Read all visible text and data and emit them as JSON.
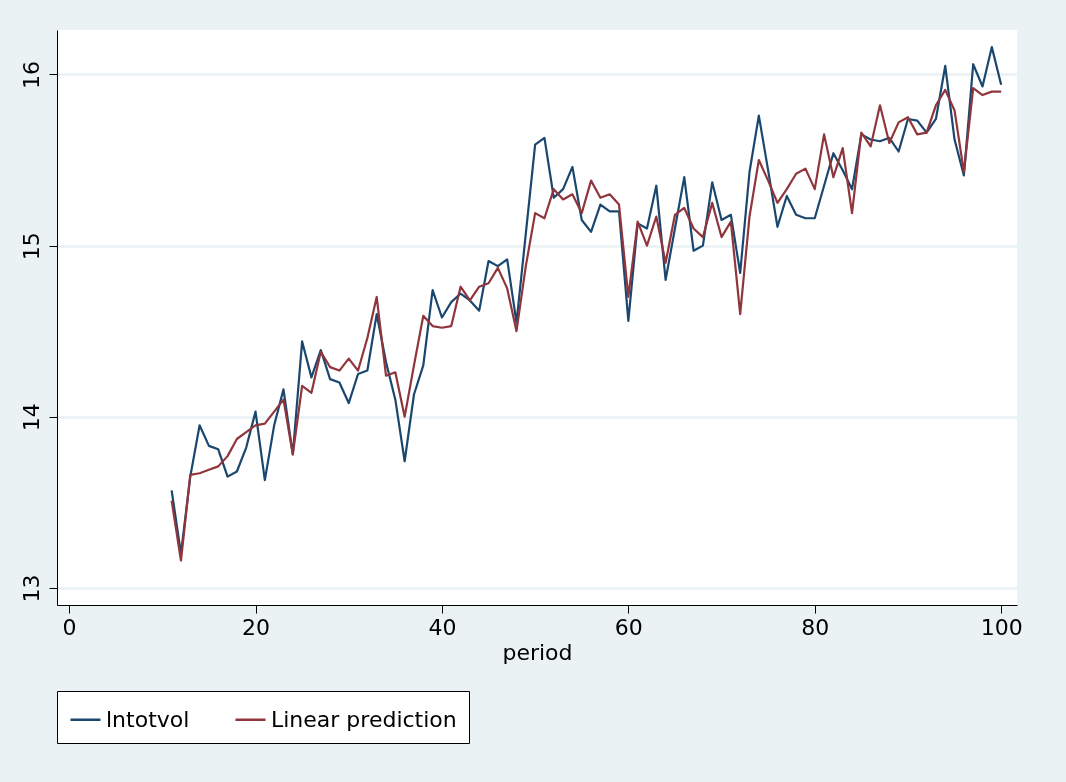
{
  "chart_data": {
    "type": "line",
    "xlabel": "period",
    "legend": "bottom",
    "grid": "y",
    "line_style": "solid",
    "marker": "none",
    "x": [
      11,
      12,
      13,
      14,
      15,
      16,
      17,
      18,
      19,
      20,
      21,
      22,
      23,
      24,
      25,
      26,
      27,
      28,
      29,
      30,
      31,
      32,
      33,
      34,
      35,
      36,
      37,
      38,
      39,
      40,
      41,
      42,
      43,
      44,
      45,
      46,
      47,
      48,
      49,
      50,
      51,
      52,
      53,
      54,
      55,
      56,
      57,
      58,
      59,
      60,
      61,
      62,
      63,
      64,
      65,
      66,
      67,
      68,
      69,
      70,
      71,
      72,
      73,
      74,
      75,
      76,
      77,
      78,
      79,
      80,
      81,
      82,
      83,
      84,
      85,
      86,
      87,
      88,
      89,
      90,
      91,
      92,
      93,
      94,
      95,
      96,
      97,
      98,
      99,
      100
    ],
    "series": [
      {
        "name": "lntotvol",
        "color": "#1a476f",
        "values": [
          13.57,
          13.2,
          13.65,
          13.95,
          13.83,
          13.81,
          13.65,
          13.68,
          13.82,
          14.03,
          13.63,
          13.95,
          14.16,
          13.78,
          14.44,
          14.23,
          14.39,
          14.22,
          14.2,
          14.08,
          14.25,
          14.27,
          14.6,
          14.32,
          14.1,
          13.74,
          14.13,
          14.3,
          14.74,
          14.58,
          14.67,
          14.72,
          14.68,
          14.62,
          14.91,
          14.88,
          14.92,
          14.55,
          15.07,
          15.59,
          15.63,
          15.28,
          15.33,
          15.46,
          15.15,
          15.08,
          15.24,
          15.2,
          15.2,
          14.56,
          15.13,
          15.1,
          15.35,
          14.8,
          15.1,
          15.4,
          14.97,
          15.0,
          15.37,
          15.15,
          15.18,
          14.84,
          15.43,
          15.76,
          15.44,
          15.11,
          15.29,
          15.18,
          15.16,
          15.16,
          15.35,
          15.54,
          15.44,
          15.33,
          15.65,
          15.62,
          15.61,
          15.63,
          15.55,
          15.74,
          15.73,
          15.66,
          15.74,
          16.05,
          15.62,
          15.41,
          16.06,
          15.93,
          16.16,
          15.94
        ]
      },
      {
        "name": "Linear prediction",
        "color": "#90353b",
        "values": [
          13.51,
          13.16,
          13.66,
          13.67,
          13.69,
          13.71,
          13.77,
          13.87,
          13.91,
          13.95,
          13.96,
          14.03,
          14.1,
          13.78,
          14.18,
          14.14,
          14.38,
          14.29,
          14.27,
          14.34,
          14.27,
          14.46,
          14.7,
          14.24,
          14.26,
          14.0,
          14.3,
          14.59,
          14.53,
          14.52,
          14.53,
          14.76,
          14.68,
          14.76,
          14.78,
          14.87,
          14.75,
          14.5,
          14.88,
          15.19,
          15.16,
          15.33,
          15.27,
          15.3,
          15.19,
          15.38,
          15.28,
          15.3,
          15.24,
          14.7,
          15.14,
          15.0,
          15.17,
          14.9,
          15.18,
          15.22,
          15.1,
          15.05,
          15.25,
          15.05,
          15.14,
          14.6,
          15.17,
          15.5,
          15.38,
          15.25,
          15.33,
          15.42,
          15.45,
          15.33,
          15.65,
          15.4,
          15.57,
          15.19,
          15.66,
          15.58,
          15.82,
          15.6,
          15.72,
          15.75,
          15.65,
          15.66,
          15.82,
          15.91,
          15.79,
          15.43,
          15.92,
          15.88,
          15.9,
          15.9
        ]
      }
    ],
    "xlim": [
      -1.3,
      101.7
    ],
    "xticks": [
      0,
      20,
      40,
      60,
      80,
      100
    ],
    "ylim": [
      12.9,
      16.26
    ],
    "yticks": [
      13,
      14,
      15,
      16
    ]
  }
}
